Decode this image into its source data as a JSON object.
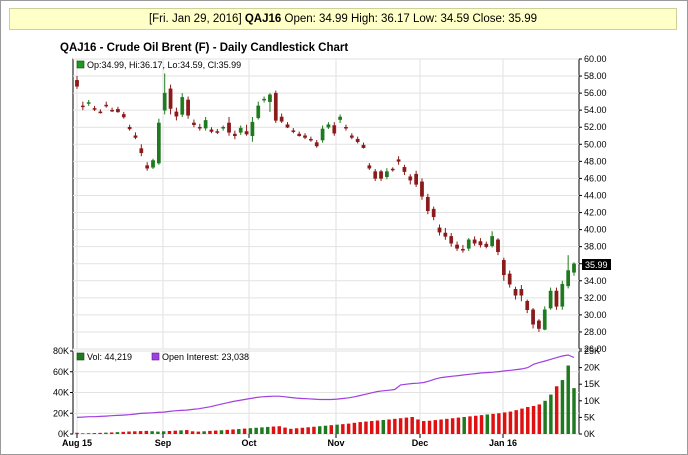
{
  "header": {
    "date_label": "[Fri. Jan 29, 2016]",
    "symbol": "QAJ16",
    "ohlc_text": "Open: 34.99 High: 36.17 Low: 34.59 Close: 35.99"
  },
  "chart_title": "QAJ16 - Crude Oil Brent (F) - Daily Candlestick Chart",
  "price_legend": "Op:34.99, Hi:36.17, Lo:34.59, Cl:35.99",
  "volume_legend": "Vol: 44,219",
  "oi_legend": "Open Interest: 23,038",
  "last_price_label": "35.99",
  "colors": {
    "up": "#1f7a1f",
    "down": "#8b1a1a",
    "vol_up": "#1f7a1f",
    "vol_down": "#e01010",
    "oi": "#a040e0"
  },
  "chart_data": [
    {
      "type": "candlestick",
      "x_tick_labels": [
        "Aug 15",
        "Sep",
        "Oct",
        "Nov",
        "Dec",
        "Jan 16"
      ],
      "y_tick_labels": [
        "26.00",
        "28.00",
        "30.00",
        "32.00",
        "34.00",
        "36.00",
        "38.00",
        "40.00",
        "42.00",
        "44.00",
        "46.00",
        "48.00",
        "50.00",
        "52.00",
        "54.00",
        "56.00",
        "58.00",
        "60.00"
      ],
      "ylim": [
        26,
        60
      ],
      "grid": true,
      "candles": [
        {
          "o": 57.5,
          "h": 58.0,
          "l": 56.5,
          "c": 56.8
        },
        {
          "o": 54.5,
          "h": 55.0,
          "l": 54.0,
          "c": 54.4
        },
        {
          "o": 54.8,
          "h": 55.2,
          "l": 54.5,
          "c": 54.9
        },
        {
          "o": 54.2,
          "h": 54.5,
          "l": 53.9,
          "c": 54.1
        },
        {
          "o": 53.8,
          "h": 54.1,
          "l": 53.6,
          "c": 53.7
        },
        {
          "o": 54.6,
          "h": 55.0,
          "l": 54.3,
          "c": 54.5
        },
        {
          "o": 54.0,
          "h": 54.3,
          "l": 53.8,
          "c": 53.9
        },
        {
          "o": 54.1,
          "h": 54.4,
          "l": 53.7,
          "c": 53.8
        },
        {
          "o": 53.5,
          "h": 53.8,
          "l": 53.0,
          "c": 53.2
        },
        {
          "o": 52.0,
          "h": 52.3,
          "l": 51.6,
          "c": 51.8
        },
        {
          "o": 51.0,
          "h": 51.4,
          "l": 50.6,
          "c": 50.8
        },
        {
          "o": 49.5,
          "h": 50.0,
          "l": 48.6,
          "c": 49.0
        },
        {
          "o": 47.5,
          "h": 47.9,
          "l": 46.9,
          "c": 47.2
        },
        {
          "o": 47.3,
          "h": 48.3,
          "l": 47.1,
          "c": 48.1
        },
        {
          "o": 47.8,
          "h": 53.0,
          "l": 47.6,
          "c": 52.5
        },
        {
          "o": 54.0,
          "h": 58.3,
          "l": 53.5,
          "c": 56.0
        },
        {
          "o": 56.5,
          "h": 57.0,
          "l": 53.5,
          "c": 54.2
        },
        {
          "o": 53.8,
          "h": 54.3,
          "l": 52.8,
          "c": 53.3
        },
        {
          "o": 53.5,
          "h": 56.0,
          "l": 53.2,
          "c": 55.5
        },
        {
          "o": 55.2,
          "h": 55.6,
          "l": 53.0,
          "c": 53.4
        },
        {
          "o": 52.5,
          "h": 52.9,
          "l": 52.0,
          "c": 52.3
        },
        {
          "o": 52.0,
          "h": 52.4,
          "l": 51.6,
          "c": 51.9
        },
        {
          "o": 51.9,
          "h": 53.2,
          "l": 51.6,
          "c": 52.8
        },
        {
          "o": 51.7,
          "h": 52.0,
          "l": 51.3,
          "c": 51.5
        },
        {
          "o": 51.5,
          "h": 51.8,
          "l": 51.2,
          "c": 51.4
        },
        {
          "o": 51.9,
          "h": 52.2,
          "l": 51.6,
          "c": 52.0
        },
        {
          "o": 52.5,
          "h": 53.2,
          "l": 51.0,
          "c": 51.4
        },
        {
          "o": 51.2,
          "h": 51.6,
          "l": 50.6,
          "c": 51.0
        },
        {
          "o": 51.4,
          "h": 52.2,
          "l": 51.1,
          "c": 51.9
        },
        {
          "o": 51.5,
          "h": 52.3,
          "l": 51.0,
          "c": 51.2
        },
        {
          "o": 51.0,
          "h": 53.2,
          "l": 50.3,
          "c": 52.6
        },
        {
          "o": 53.1,
          "h": 55.0,
          "l": 52.9,
          "c": 54.5
        },
        {
          "o": 55.2,
          "h": 55.6,
          "l": 54.9,
          "c": 55.3
        },
        {
          "o": 55.0,
          "h": 56.0,
          "l": 53.8,
          "c": 55.8
        },
        {
          "o": 56.0,
          "h": 56.3,
          "l": 52.5,
          "c": 52.8
        },
        {
          "o": 53.2,
          "h": 53.6,
          "l": 52.5,
          "c": 52.7
        },
        {
          "o": 52.3,
          "h": 52.6,
          "l": 51.9,
          "c": 52.0
        },
        {
          "o": 51.6,
          "h": 51.9,
          "l": 51.3,
          "c": 51.5
        },
        {
          "o": 51.2,
          "h": 51.5,
          "l": 50.9,
          "c": 51.0
        },
        {
          "o": 51.0,
          "h": 51.3,
          "l": 50.6,
          "c": 50.8
        },
        {
          "o": 50.6,
          "h": 50.9,
          "l": 50.3,
          "c": 50.5
        },
        {
          "o": 50.2,
          "h": 50.5,
          "l": 49.6,
          "c": 49.8
        },
        {
          "o": 50.5,
          "h": 52.2,
          "l": 50.2,
          "c": 51.8
        },
        {
          "o": 52.0,
          "h": 52.6,
          "l": 51.8,
          "c": 52.3
        },
        {
          "o": 52.2,
          "h": 52.6,
          "l": 51.0,
          "c": 51.3
        },
        {
          "o": 52.9,
          "h": 53.5,
          "l": 52.5,
          "c": 53.2
        },
        {
          "o": 52.0,
          "h": 52.3,
          "l": 51.6,
          "c": 51.9
        },
        {
          "o": 51.0,
          "h": 51.3,
          "l": 50.6,
          "c": 50.8
        },
        {
          "o": 50.6,
          "h": 50.9,
          "l": 50.1,
          "c": 50.3
        },
        {
          "o": 49.9,
          "h": 50.2,
          "l": 49.5,
          "c": 49.6
        },
        {
          "o": 47.5,
          "h": 47.8,
          "l": 47.0,
          "c": 47.2
        },
        {
          "o": 46.8,
          "h": 47.1,
          "l": 45.7,
          "c": 46.0
        },
        {
          "o": 46.8,
          "h": 47.0,
          "l": 45.7,
          "c": 46.0
        },
        {
          "o": 46.2,
          "h": 47.2,
          "l": 45.9,
          "c": 46.8
        },
        {
          "o": 47.1,
          "h": 47.3,
          "l": 46.8,
          "c": 47.0
        },
        {
          "o": 48.2,
          "h": 48.6,
          "l": 47.6,
          "c": 48.0
        },
        {
          "o": 47.3,
          "h": 47.6,
          "l": 46.4,
          "c": 46.8
        },
        {
          "o": 46.2,
          "h": 46.5,
          "l": 45.3,
          "c": 45.8
        },
        {
          "o": 46.5,
          "h": 46.9,
          "l": 45.0,
          "c": 45.3
        },
        {
          "o": 45.6,
          "h": 46.0,
          "l": 43.5,
          "c": 43.9
        },
        {
          "o": 43.8,
          "h": 44.2,
          "l": 41.8,
          "c": 42.2
        },
        {
          "o": 42.4,
          "h": 42.7,
          "l": 41.1,
          "c": 41.5
        },
        {
          "o": 40.2,
          "h": 40.6,
          "l": 39.3,
          "c": 39.7
        },
        {
          "o": 39.6,
          "h": 40.2,
          "l": 38.8,
          "c": 39.2
        },
        {
          "o": 39.2,
          "h": 39.6,
          "l": 38.0,
          "c": 38.4
        },
        {
          "o": 38.2,
          "h": 38.6,
          "l": 37.5,
          "c": 37.8
        },
        {
          "o": 37.7,
          "h": 38.2,
          "l": 37.3,
          "c": 37.6
        },
        {
          "o": 37.8,
          "h": 39.0,
          "l": 37.5,
          "c": 38.8
        },
        {
          "o": 38.8,
          "h": 39.2,
          "l": 38.1,
          "c": 38.4
        },
        {
          "o": 38.6,
          "h": 39.0,
          "l": 37.9,
          "c": 38.2
        },
        {
          "o": 38.3,
          "h": 38.6,
          "l": 37.8,
          "c": 38.0
        },
        {
          "o": 38.1,
          "h": 39.8,
          "l": 37.9,
          "c": 39.2
        },
        {
          "o": 38.8,
          "h": 39.0,
          "l": 37.0,
          "c": 37.4
        },
        {
          "o": 36.4,
          "h": 36.7,
          "l": 34.0,
          "c": 34.7
        },
        {
          "o": 34.8,
          "h": 35.2,
          "l": 33.2,
          "c": 33.6
        },
        {
          "o": 33.0,
          "h": 33.3,
          "l": 31.8,
          "c": 32.3
        },
        {
          "o": 33.0,
          "h": 33.5,
          "l": 31.6,
          "c": 32.3
        },
        {
          "o": 31.6,
          "h": 31.8,
          "l": 30.2,
          "c": 30.6
        },
        {
          "o": 30.6,
          "h": 30.8,
          "l": 28.4,
          "c": 28.9
        },
        {
          "o": 29.3,
          "h": 29.5,
          "l": 28.0,
          "c": 28.4
        },
        {
          "o": 28.3,
          "h": 31.0,
          "l": 28.2,
          "c": 30.6
        },
        {
          "o": 30.8,
          "h": 33.2,
          "l": 30.6,
          "c": 32.8
        },
        {
          "o": 32.8,
          "h": 33.2,
          "l": 30.6,
          "c": 31.0
        },
        {
          "o": 31.0,
          "h": 34.0,
          "l": 30.6,
          "c": 33.6
        },
        {
          "o": 33.4,
          "h": 37.0,
          "l": 33.1,
          "c": 35.2
        },
        {
          "o": 34.99,
          "h": 36.17,
          "l": 34.59,
          "c": 35.99
        }
      ]
    },
    {
      "type": "bar+line",
      "y_tick_labels_left": [
        "0K",
        "20K",
        "40K",
        "60K",
        "80K"
      ],
      "ylim_left": [
        0,
        80000
      ],
      "y_tick_labels_right": [
        "0K",
        "5K",
        "10K",
        "15K",
        "20K",
        "25K"
      ],
      "ylim_right": [
        0,
        25000
      ],
      "volume": [
        1200,
        700,
        800,
        900,
        1100,
        1300,
        1500,
        1800,
        2100,
        2400,
        2600,
        2800,
        3000,
        2700,
        2300,
        2600,
        2900,
        3200,
        3500,
        3800,
        2600,
        2300,
        2600,
        3000,
        3300,
        3600,
        4000,
        4400,
        4800,
        5200,
        5600,
        6000,
        6400,
        6800,
        7200,
        7500,
        6200,
        5000,
        5500,
        6000,
        6500,
        7000,
        7500,
        8000,
        8500,
        9000,
        9500,
        10000,
        10800,
        11500,
        12000,
        12500,
        13000,
        13500,
        14000,
        14600,
        15200,
        15800,
        16400,
        14000,
        12500,
        12800,
        13400,
        14000,
        14600,
        15200,
        15800,
        16400,
        17000,
        17600,
        18200,
        18800,
        19400,
        20000,
        20800,
        21600,
        23000,
        24500,
        26000,
        27000,
        28500,
        32000,
        38000,
        46000,
        52000,
        66000,
        44219
      ],
      "volume_up": [
        false,
        true,
        true,
        false,
        false,
        true,
        false,
        true,
        false,
        false,
        false,
        false,
        false,
        true,
        true,
        true,
        false,
        false,
        true,
        false,
        false,
        false,
        true,
        false,
        false,
        true,
        false,
        false,
        true,
        false,
        true,
        true,
        true,
        true,
        false,
        false,
        false,
        false,
        false,
        false,
        false,
        false,
        true,
        true,
        false,
        true,
        false,
        false,
        false,
        false,
        false,
        false,
        false,
        true,
        false,
        false,
        false,
        false,
        false,
        false,
        false,
        false,
        false,
        false,
        false,
        false,
        false,
        true,
        false,
        false,
        false,
        true,
        false,
        false,
        false,
        false,
        false,
        false,
        false,
        false,
        false,
        true,
        true,
        false,
        true,
        true,
        true
      ],
      "open_interest": [
        5000,
        5100,
        5200,
        5200,
        5300,
        5400,
        5500,
        5600,
        5700,
        5800,
        6000,
        6200,
        6300,
        6400,
        6500,
        6600,
        6800,
        7000,
        7100,
        7200,
        7400,
        7600,
        7900,
        8200,
        8600,
        9000,
        9400,
        9800,
        10100,
        10400,
        10700,
        11000,
        11200,
        11300,
        11400,
        11400,
        11200,
        11000,
        10800,
        10700,
        10600,
        10500,
        10400,
        10400,
        10400,
        10500,
        10700,
        10900,
        11200,
        11600,
        12000,
        12400,
        12800,
        13000,
        13200,
        13400,
        14800,
        15000,
        15200,
        15300,
        15500,
        16000,
        16600,
        17000,
        17200,
        17400,
        17600,
        17800,
        18000,
        18200,
        18400,
        18500,
        18600,
        18800,
        19000,
        19200,
        19400,
        19600,
        20000,
        21000,
        21500,
        22000,
        22500,
        23000,
        23500,
        23800,
        23038
      ]
    }
  ]
}
